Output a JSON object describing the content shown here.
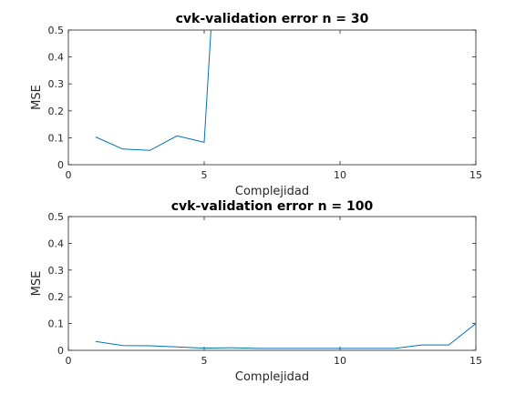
{
  "chart_data": [
    {
      "type": "line",
      "title": "cvk-validation error n = 30",
      "xlabel": "Complejidad",
      "ylabel": "MSE",
      "xlim": [
        0,
        15
      ],
      "ylim": [
        0,
        0.5
      ],
      "xticks": [
        "0",
        "5",
        "10",
        "15"
      ],
      "yticks": [
        "0",
        "0.1",
        "0.2",
        "0.3",
        "0.4",
        "0.5"
      ],
      "grid": false,
      "color": "#0072BD",
      "x": [
        1,
        2,
        3,
        4,
        5,
        5.25
      ],
      "y": [
        0.103,
        0.058,
        0.053,
        0.107,
        0.083,
        0.5
      ]
    },
    {
      "type": "line",
      "title": "cvk-validation error n = 100",
      "xlabel": "Complejidad",
      "ylabel": "MSE",
      "xlim": [
        0,
        15
      ],
      "ylim": [
        0,
        0.5
      ],
      "xticks": [
        "0",
        "5",
        "10",
        "15"
      ],
      "yticks": [
        "0",
        "0.1",
        "0.2",
        "0.3",
        "0.4",
        "0.5"
      ],
      "grid": false,
      "color": "#0072BD",
      "x": [
        1,
        2,
        3,
        4,
        5,
        6,
        7,
        8,
        9,
        10,
        11,
        12,
        13,
        14,
        15
      ],
      "y": [
        0.033,
        0.018,
        0.017,
        0.013,
        0.008,
        0.01,
        0.007,
        0.007,
        0.007,
        0.007,
        0.007,
        0.007,
        0.02,
        0.02,
        0.1
      ]
    }
  ]
}
